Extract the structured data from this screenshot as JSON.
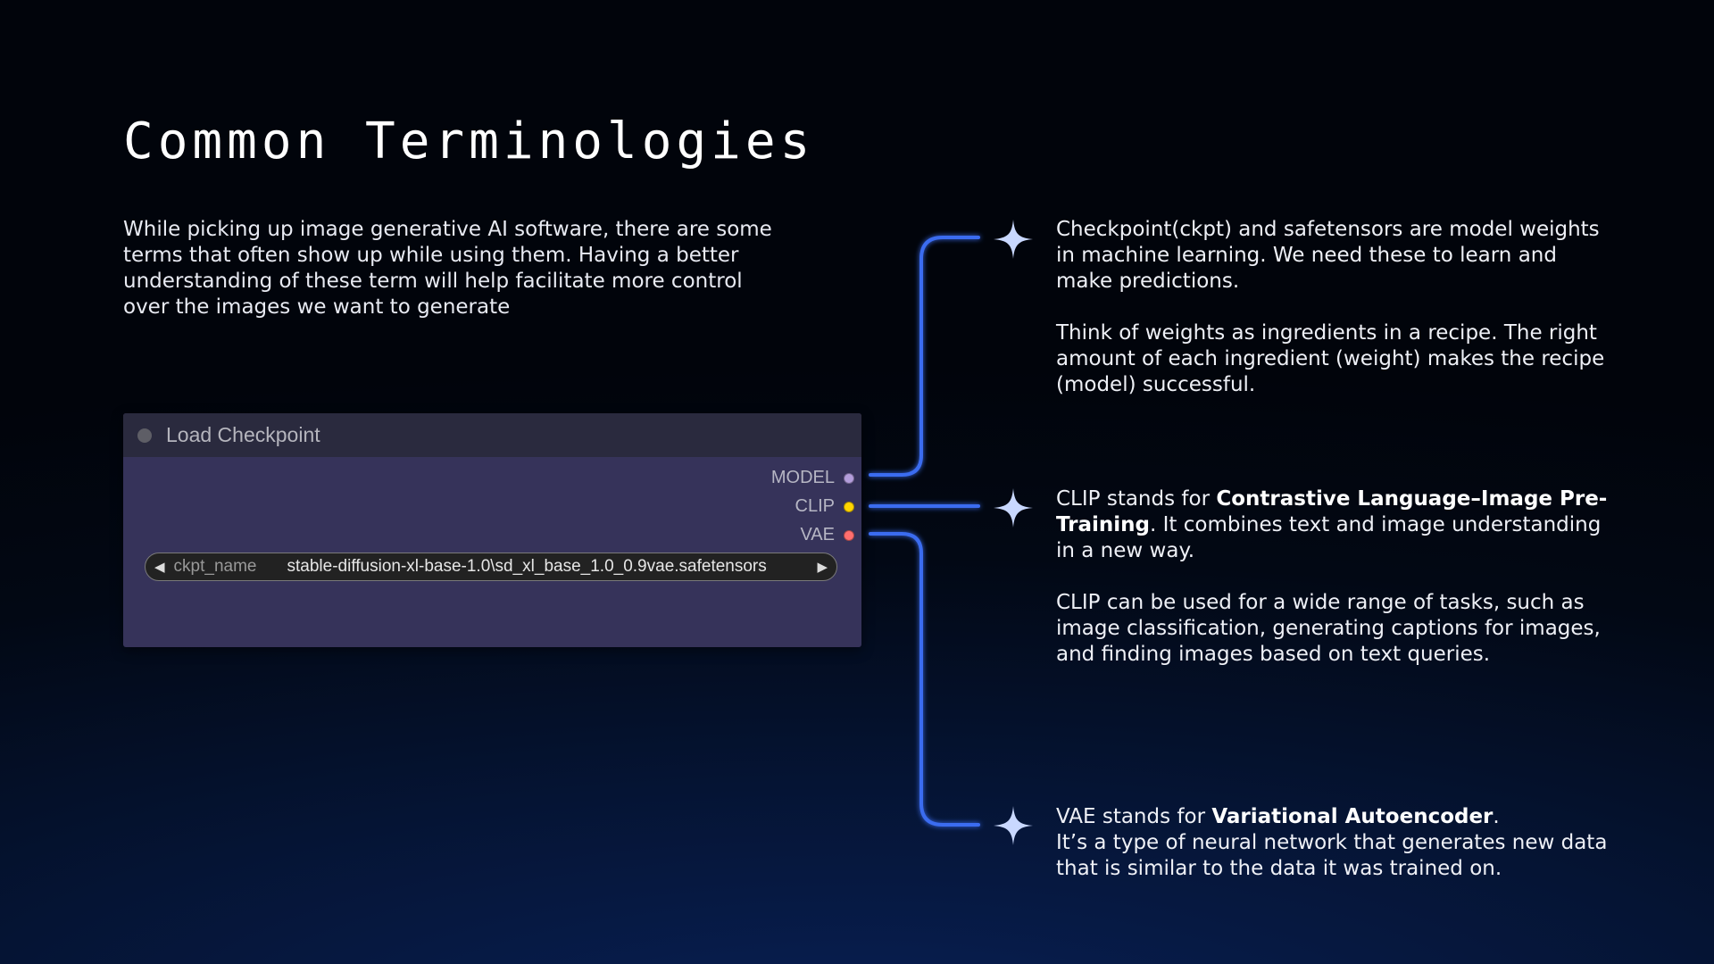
{
  "title": "Common Terminologies",
  "intro": "While picking up image generative AI software, there are some terms that often show up while using them. Having a better understanding of these term will help facilitate more control over the images we want to generate",
  "node": {
    "title": "Load Checkpoint",
    "outputs": [
      {
        "label": "MODEL",
        "color": "#b39ddb"
      },
      {
        "label": "CLIP",
        "color": "#ffd500"
      },
      {
        "label": "VAE",
        "color": "#ff6e6e"
      }
    ],
    "widget": {
      "label": "ckpt_name",
      "value": "stable-diffusion-xl-base-1.0\\sd_xl_base_1.0_0.9vae.safetensors"
    }
  },
  "descriptions": {
    "checkpoint": {
      "p1": "Checkpoint(ckpt) and safetensors are model weights in machine learning. We need these to learn and make predictions.",
      "p2": "Think of weights as ingredients in a recipe. The right amount of each ingredient (weight) makes the recipe (model) successful."
    },
    "clip": {
      "p1_pre": "CLIP stands for ",
      "p1_bold": "Contrastive Language–Image Pre-Training",
      "p1_post": ". It combines text and image understanding in a new way.",
      "p2": "CLIP can be used for a wide range of tasks, such as image classification, generating captions for images, and finding images based on text queries."
    },
    "vae": {
      "p1_pre": "VAE stands for ",
      "p1_bold": "Variational Autoencoder",
      "p1_post": ".",
      "p1_line2": "It’s a type of neural network that generates new data that is similar to the data it was trained on."
    }
  },
  "colors": {
    "connector": "#3a6cf0",
    "star": "#c9d8ff"
  },
  "icons": [
    "sparkle-icon",
    "chevron-left-icon",
    "chevron-right-icon",
    "status-dot-icon"
  ]
}
